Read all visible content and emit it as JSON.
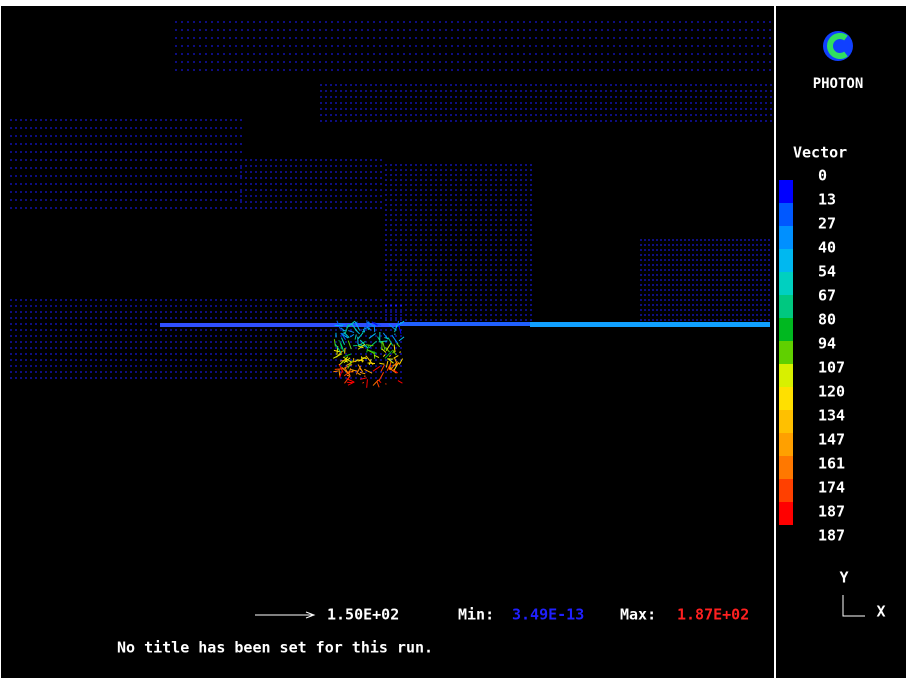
{
  "logo": {
    "text": "PHOTON"
  },
  "legend": {
    "title": "Vector",
    "labels": [
      "0",
      "13",
      "27",
      "40",
      "54",
      "67",
      "80",
      "94",
      "107",
      "120",
      "134",
      "147",
      "161",
      "174",
      "187"
    ],
    "last_label": "187",
    "colors": [
      "#0000ff",
      "#0058ff",
      "#0090ff",
      "#00b8f0",
      "#00d0c0",
      "#00c880",
      "#00b820",
      "#60d000",
      "#d8f000",
      "#ffe000",
      "#ffc000",
      "#ffa000",
      "#ff7800",
      "#ff4000",
      "#ff0000"
    ]
  },
  "reference_vector": {
    "label": "1.50E+02"
  },
  "range": {
    "min_label": "Min:",
    "min_value": "3.49E-13",
    "max_label": "Max:",
    "max_value": "1.87E+02"
  },
  "run_title": "No title has been set for this run.",
  "axes": {
    "y": "Y",
    "x": "X"
  }
}
